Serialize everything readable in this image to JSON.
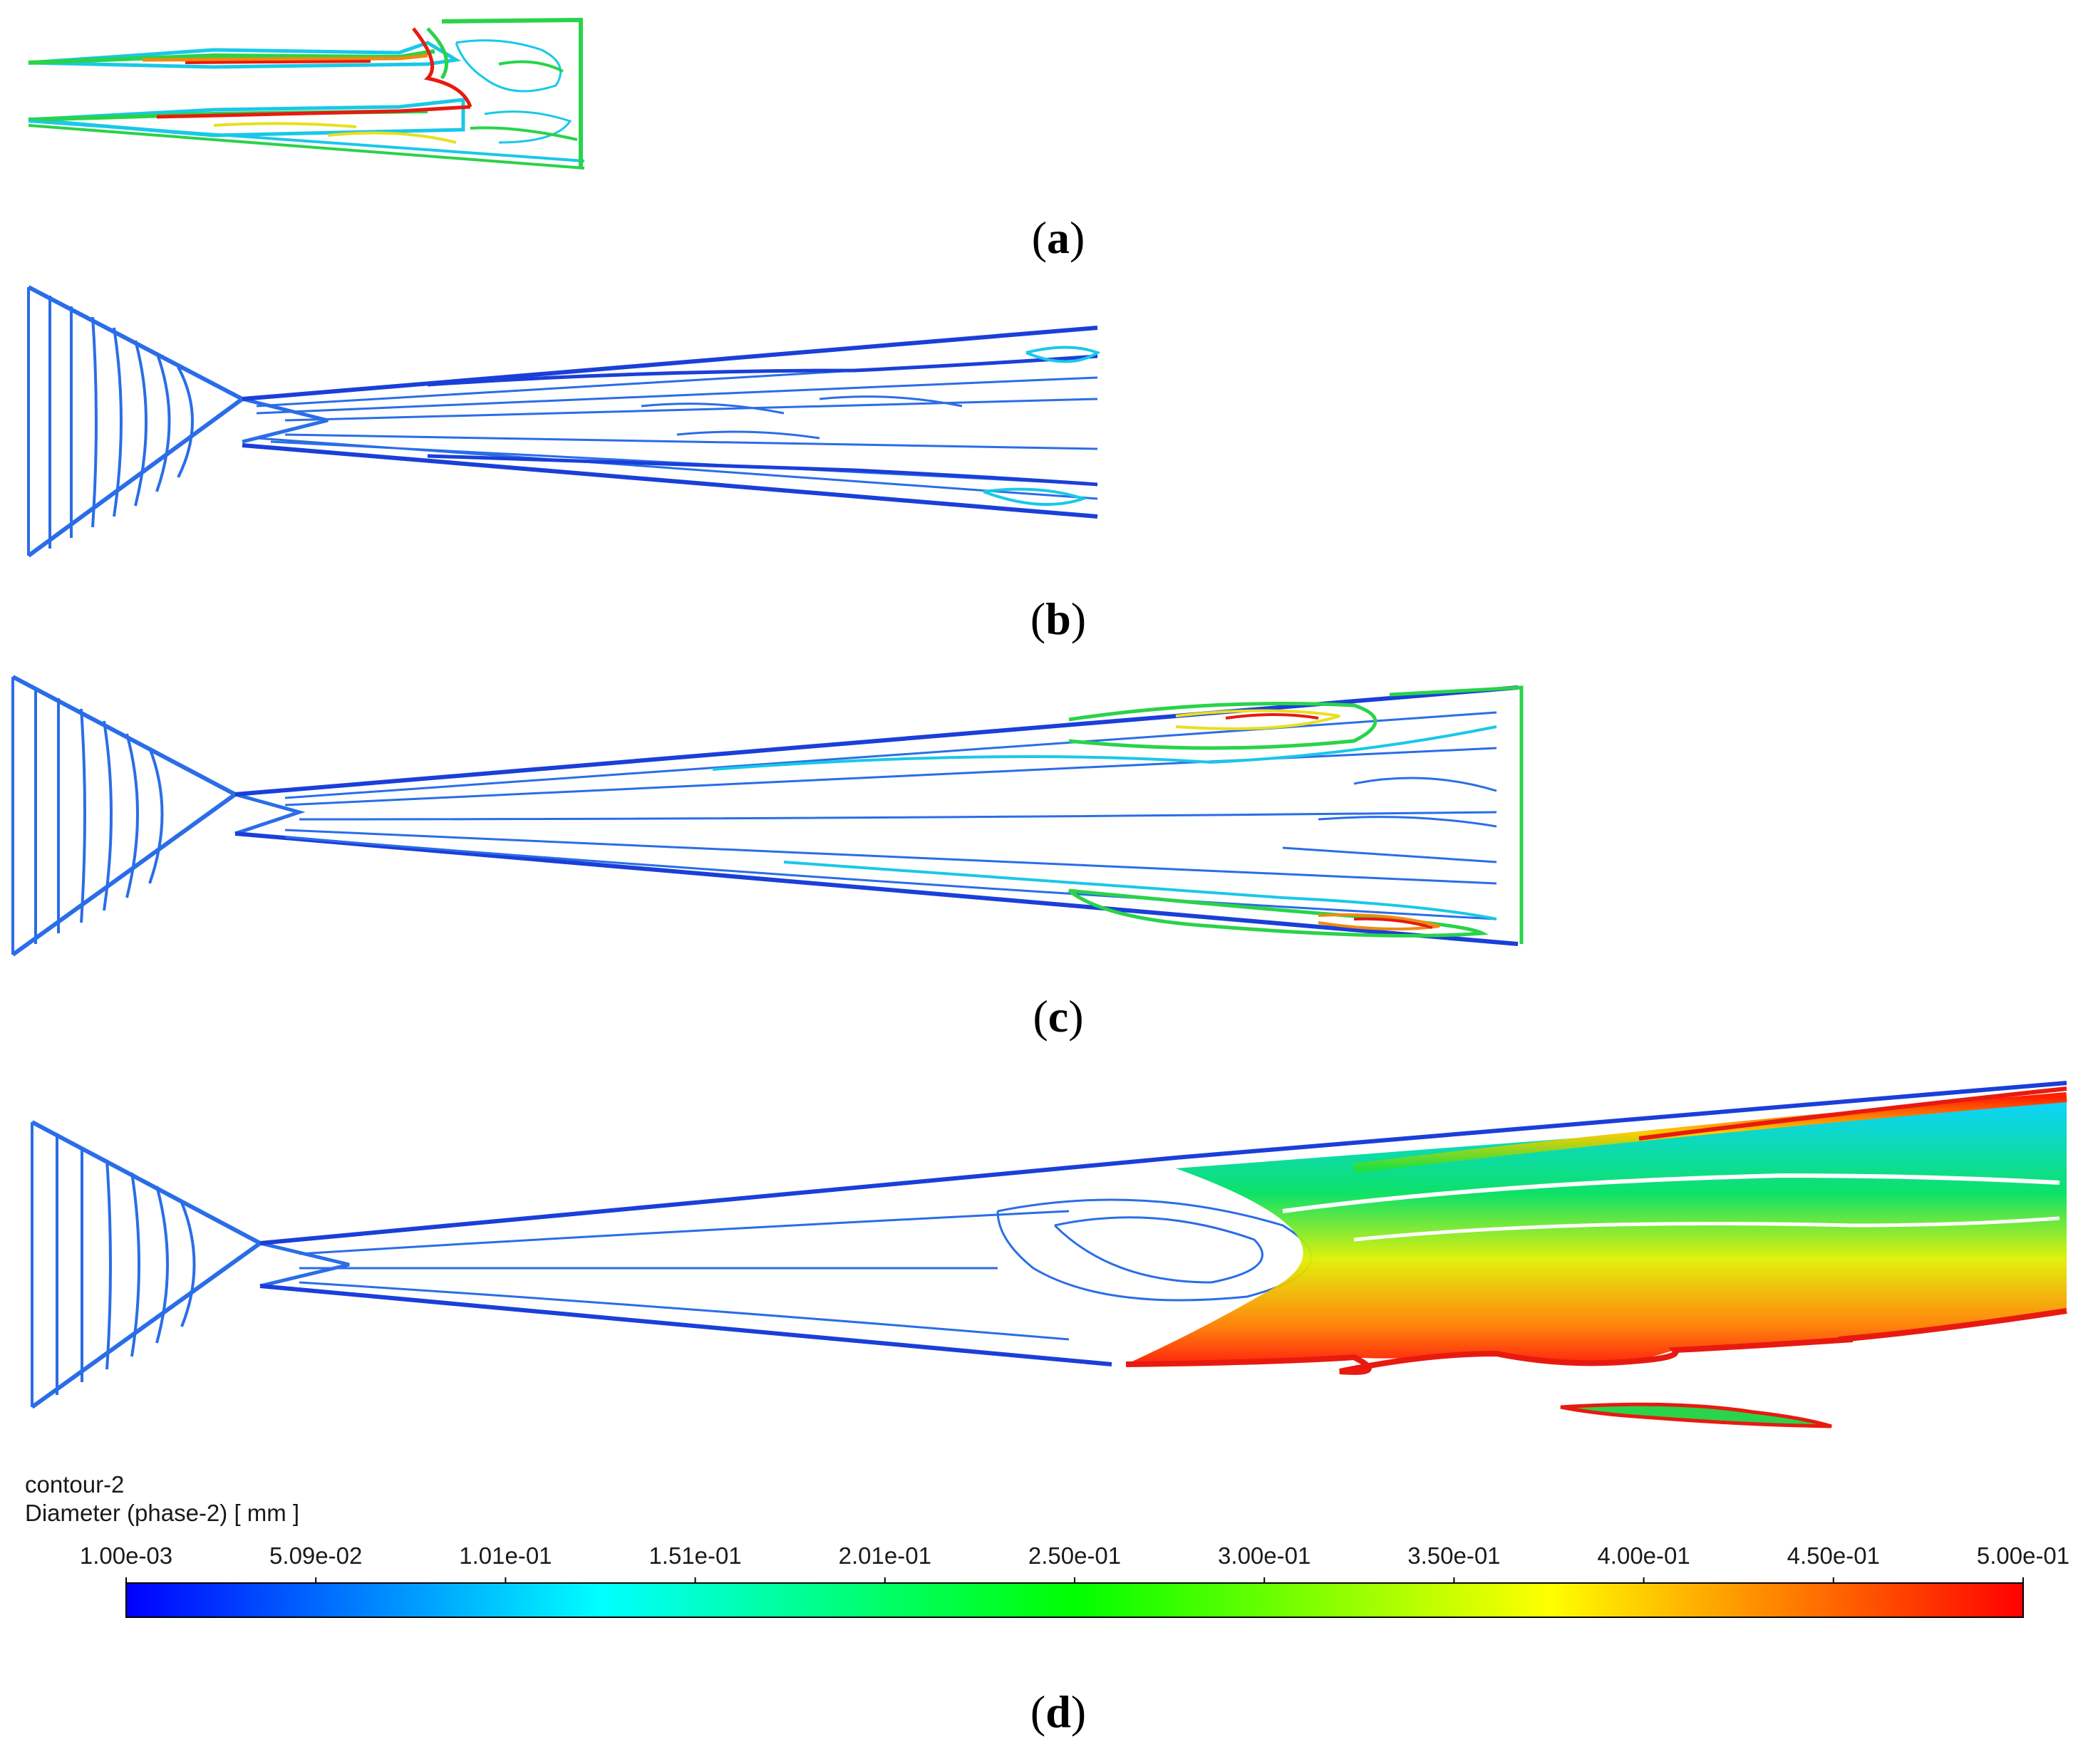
{
  "panels": [
    {
      "id": "a",
      "label_open": "(",
      "label_letter": "a",
      "label_close": ")"
    },
    {
      "id": "b",
      "label_open": "(",
      "label_letter": "b",
      "label_close": ")"
    },
    {
      "id": "c",
      "label_open": "(",
      "label_letter": "c",
      "label_close": ")"
    },
    {
      "id": "d",
      "label_open": "(",
      "label_letter": "d",
      "label_close": ")"
    }
  ],
  "legend": {
    "name": "contour-2",
    "quantity": "Diameter (phase-2)  [ mm ]",
    "ticks": [
      "1.00e-03",
      "5.09e-02",
      "1.01e-01",
      "1.51e-01",
      "2.01e-01",
      "2.50e-01",
      "3.00e-01",
      "3.50e-01",
      "4.00e-01",
      "4.50e-01",
      "5.00e-01"
    ],
    "colormap": [
      "#0000ff",
      "#0080ff",
      "#00ffff",
      "#00ff80",
      "#00ff00",
      "#80ff00",
      "#ffff00",
      "#ff8000",
      "#ff0000"
    ]
  },
  "colors": {
    "blue_dark": "#1a3fd9",
    "blue_mid": "#2a6de8",
    "cyan": "#19c8e8",
    "green": "#29d34a",
    "yellow": "#e8e020",
    "orange": "#f08a10",
    "red": "#e81a10"
  }
}
